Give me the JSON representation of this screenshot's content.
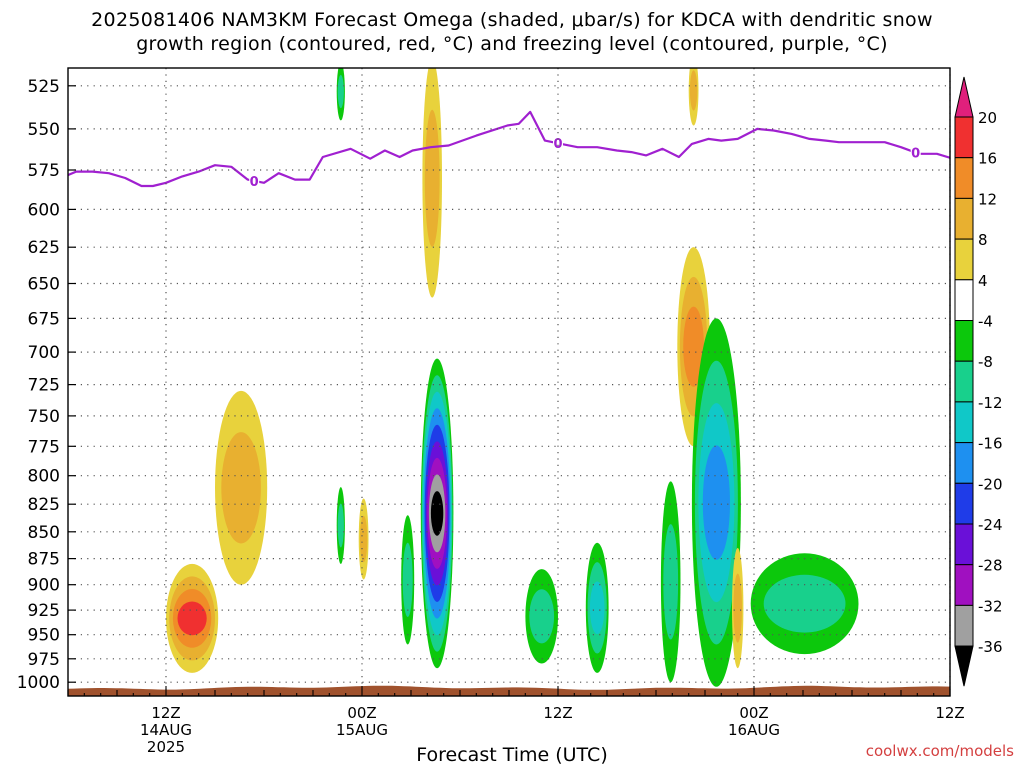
{
  "title_line1": "2025081406 NAM3KM Forecast Omega (shaded, μbar/s) for KDCA with dendritic snow",
  "title_line2": "growth region (contoured, red, °C) and freezing level (contoured, purple, °C)",
  "credit": "coolwx.com/models",
  "chart_data": {
    "type": "heatmap",
    "title": "2025081406 NAM3KM Forecast Omega (shaded, μbar/s) for KDCA with dendritic snow growth region (contoured, red, °C) and freezing level (contoured, purple, °C)",
    "xlabel": "Forecast Time (UTC)",
    "ylabel": "",
    "x_units": "hours from 2025-08-14 06Z",
    "xlim": [
      0,
      54
    ],
    "ylim": [
      1015,
      515
    ],
    "y_scale": "log",
    "grid": true,
    "x_ticks": [
      {
        "x": 6,
        "labels": [
          "12Z",
          "14AUG",
          "2025"
        ]
      },
      {
        "x": 18,
        "labels": [
          "00Z",
          "15AUG"
        ]
      },
      {
        "x": 30,
        "labels": [
          "12Z"
        ]
      },
      {
        "x": 42,
        "labels": [
          "00Z",
          "16AUG"
        ]
      },
      {
        "x": 54,
        "labels": [
          "12Z"
        ]
      }
    ],
    "y_ticks": [
      525,
      550,
      575,
      600,
      625,
      650,
      675,
      700,
      725,
      750,
      775,
      800,
      825,
      850,
      875,
      900,
      925,
      950,
      975,
      1000
    ],
    "colorbar": {
      "label_values": [
        20,
        16,
        12,
        8,
        4,
        -4,
        -8,
        -12,
        -16,
        -20,
        -24,
        -28,
        -32,
        -36
      ],
      "bins": [
        {
          "range": [
            16,
            20
          ],
          "color": "#f03030"
        },
        {
          "range": [
            12,
            16
          ],
          "color": "#f08c28"
        },
        {
          "range": [
            8,
            12
          ],
          "color": "#e8b030"
        },
        {
          "range": [
            4,
            8
          ],
          "color": "#e8d23c"
        },
        {
          "range": [
            -4,
            4
          ],
          "color": "#ffffff"
        },
        {
          "range": [
            -8,
            -4
          ],
          "color": "#0cc80c"
        },
        {
          "range": [
            -12,
            -8
          ],
          "color": "#18d08c"
        },
        {
          "range": [
            -16,
            -12
          ],
          "color": "#10c8c8"
        },
        {
          "range": [
            -20,
            -16
          ],
          "color": "#1e90f0"
        },
        {
          "range": [
            -24,
            -20
          ],
          "color": "#1f3ce8"
        },
        {
          "range": [
            -28,
            -24
          ],
          "color": "#6a10d8"
        },
        {
          "range": [
            -32,
            -28
          ],
          "color": "#a010c0"
        },
        {
          "range": [
            -36,
            -32
          ],
          "color": "#a0a0a0"
        }
      ],
      "top_extend_color": "#e0207c",
      "bottom_extend_color": "#000000"
    },
    "freezing_level": {
      "color": "#a020d0",
      "label": "0",
      "x": [
        -0.9,
        0.5,
        1.5,
        2.5,
        3.5,
        4.5,
        5.2,
        6,
        7,
        8,
        9,
        10,
        11,
        12,
        12.9,
        13.9,
        14.8,
        15.6,
        17.3,
        18.5,
        19.4,
        20.3,
        21.1,
        22.2,
        23.3,
        25,
        26.9,
        27.6,
        28.3,
        29.2,
        30.2,
        31.2,
        32.4,
        33.6,
        34.5,
        35.4,
        36.4,
        37.4,
        38.2,
        39.2,
        40,
        41,
        42.2,
        43.2,
        44.3,
        45.4,
        46.4,
        47.2,
        48.2,
        49,
        50,
        51,
        52.1,
        53.2,
        54.2,
        55.2,
        56.2,
        57.3,
        57.9
      ],
      "y": [
        582,
        576,
        576,
        577,
        580,
        585,
        585,
        583,
        579,
        576,
        572,
        573,
        581,
        583,
        577,
        581,
        581,
        567,
        562,
        568,
        563,
        567,
        563,
        561,
        560,
        554,
        548,
        547,
        540,
        557,
        559,
        561,
        561,
        563,
        564,
        566,
        562,
        567,
        559,
        556,
        557,
        556,
        550,
        551,
        553,
        556,
        557,
        558,
        558,
        558,
        558,
        561,
        565,
        565,
        568,
        564,
        564,
        564,
        566
      ]
    },
    "omega_features": [
      {
        "x_center": 7.6,
        "x_halfwidth": 1.6,
        "p_top": 880,
        "p_bottom": 990,
        "min_level_ubar_s": 4,
        "peak_ubar_s": 16
      },
      {
        "x_center": 10.6,
        "x_halfwidth": 1.6,
        "p_top": 730,
        "p_bottom": 900,
        "min_level_ubar_s": 4,
        "peak_ubar_s": 8
      },
      {
        "x_center": 16.7,
        "x_halfwidth": 0.25,
        "p_top": 512,
        "p_bottom": 545,
        "min_level_ubar_s": -4,
        "peak_ubar_s": -8
      },
      {
        "x_center": 16.7,
        "x_halfwidth": 0.25,
        "p_top": 810,
        "p_bottom": 880,
        "min_level_ubar_s": -4,
        "peak_ubar_s": -8
      },
      {
        "x_center": 18.1,
        "x_halfwidth": 0.3,
        "p_top": 820,
        "p_bottom": 895,
        "min_level_ubar_s": 4,
        "peak_ubar_s": 8
      },
      {
        "x_center": 22.3,
        "x_halfwidth": 0.6,
        "p_top": 510,
        "p_bottom": 660,
        "min_level_ubar_s": 4,
        "peak_ubar_s": 8
      },
      {
        "x_center": 20.8,
        "x_halfwidth": 0.4,
        "p_top": 835,
        "p_bottom": 960,
        "min_level_ubar_s": -4,
        "peak_ubar_s": -8
      },
      {
        "x_center": 22.6,
        "x_halfwidth": 1.0,
        "p_top": 705,
        "p_bottom": 985,
        "min_level_ubar_s": -4,
        "peak_ubar_s": -36
      },
      {
        "x_center": 29.0,
        "x_halfwidth": 1.0,
        "p_top": 885,
        "p_bottom": 980,
        "min_level_ubar_s": -4,
        "peak_ubar_s": -8
      },
      {
        "x_center": 32.4,
        "x_halfwidth": 0.7,
        "p_top": 860,
        "p_bottom": 990,
        "min_level_ubar_s": -4,
        "peak_ubar_s": -12
      },
      {
        "x_center": 36.9,
        "x_halfwidth": 0.6,
        "p_top": 805,
        "p_bottom": 1000,
        "min_level_ubar_s": -4,
        "peak_ubar_s": -8
      },
      {
        "x_center": 38.3,
        "x_halfwidth": 1.0,
        "p_top": 625,
        "p_bottom": 775,
        "min_level_ubar_s": 4,
        "peak_ubar_s": 12
      },
      {
        "x_center": 38.3,
        "x_halfwidth": 0.3,
        "p_top": 508,
        "p_bottom": 548,
        "min_level_ubar_s": 4,
        "peak_ubar_s": 8
      },
      {
        "x_center": 39.7,
        "x_halfwidth": 1.5,
        "p_top": 675,
        "p_bottom": 1005,
        "min_level_ubar_s": -4,
        "peak_ubar_s": -16
      },
      {
        "x_center": 41.0,
        "x_halfwidth": 0.35,
        "p_top": 865,
        "p_bottom": 985,
        "min_level_ubar_s": 4,
        "peak_ubar_s": 8
      },
      {
        "x_center": 45.1,
        "x_halfwidth": 3.3,
        "p_top": 870,
        "p_bottom": 970,
        "min_level_ubar_s": -4,
        "peak_ubar_s": -8
      }
    ],
    "ground_pressure_hpa": 1006,
    "ground_color": "#a0522d"
  }
}
